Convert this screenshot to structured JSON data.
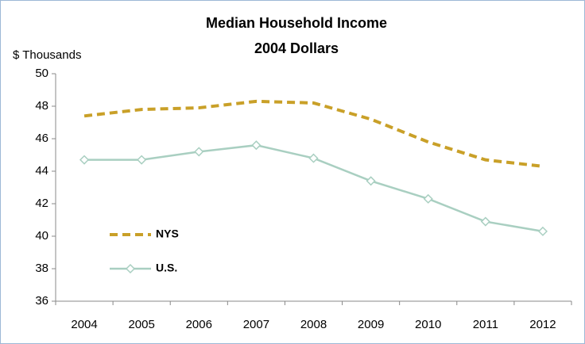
{
  "chart_data": {
    "type": "line",
    "title": [
      "Median Household Income",
      "2004 Dollars"
    ],
    "y_label": "$ Thousands",
    "categories": [
      "2004",
      "2005",
      "2006",
      "2007",
      "2008",
      "2009",
      "2010",
      "2011",
      "2012"
    ],
    "series": [
      {
        "name": "NYS",
        "color": "#C9A028",
        "line_style": "dashed",
        "marker": "none",
        "values": [
          47.4,
          47.8,
          47.9,
          48.3,
          48.2,
          47.2,
          45.8,
          44.7,
          44.3
        ]
      },
      {
        "name": "U.S.",
        "color": "#A9CFC1",
        "line_style": "solid",
        "marker": "diamond",
        "values": [
          44.7,
          44.7,
          45.2,
          45.6,
          44.8,
          43.4,
          42.3,
          40.9,
          40.3
        ]
      }
    ],
    "ylim": [
      36,
      50
    ],
    "yticks": [
      36,
      38,
      40,
      42,
      44,
      46,
      48,
      50
    ],
    "grid": false,
    "legend": "lower left"
  }
}
